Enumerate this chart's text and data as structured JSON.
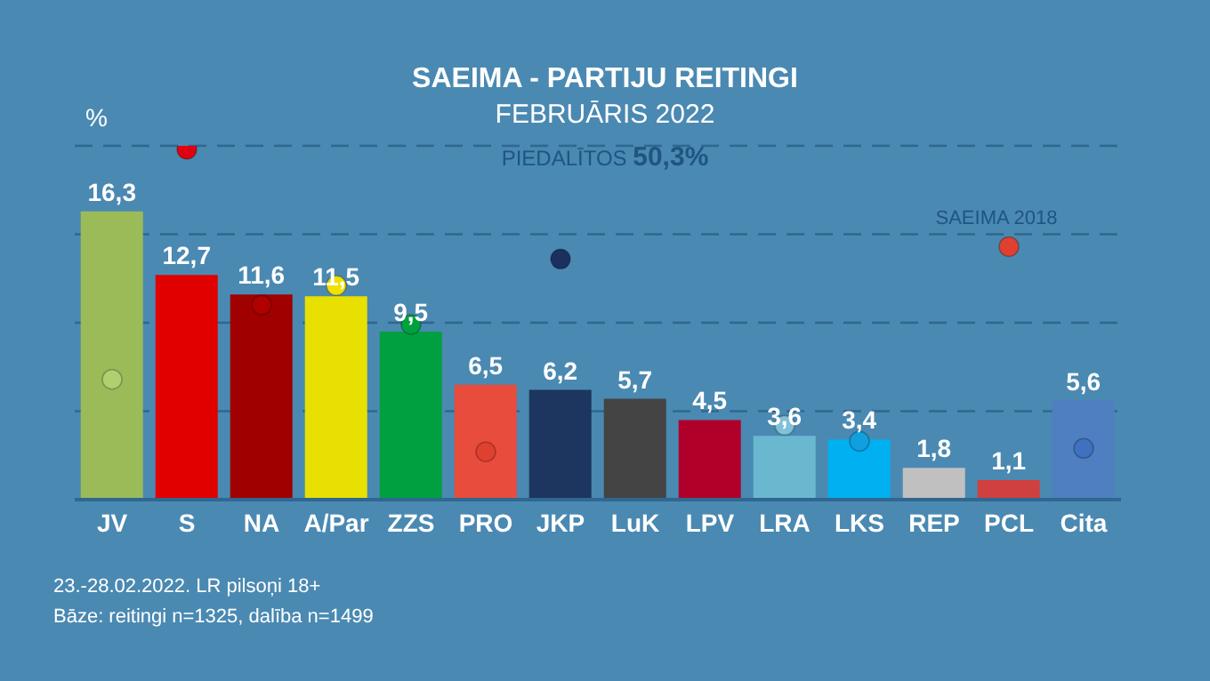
{
  "chart_data": {
    "type": "bar",
    "title": "SAEIMA - PARTIJU REITINGI",
    "subtitle": "FEBRUĀRIS 2022",
    "ylabel": "%",
    "annotations": [
      "PIEDALĪTOS 50,3%",
      "23.-28.02.2022. LR pilsoņi 18+",
      "Bāze: reitingi n=1325, dalība n=1499",
      "SAEIMA 2018"
    ],
    "categories": [
      "JV",
      "S",
      "NA",
      "A/Par",
      "ZZS",
      "PRO",
      "JKP",
      "LuK",
      "LPV",
      "LRA",
      "LKS",
      "REP",
      "PCL",
      "Cita"
    ],
    "series": [
      {
        "values": [
          16.3,
          12.7,
          11.6,
          11.5,
          9.5,
          6.5,
          6.2,
          5.7,
          4.5,
          3.6,
          3.4,
          1.8,
          1.1,
          5.6
        ],
        "colors": [
          "#9bbb59",
          "#e00000",
          "#a00000",
          "#e8e000",
          "#00a040",
          "#e84c3d",
          "#1c3660",
          "#444444",
          "#b0002a",
          "#6ab8d0",
          "#00b0f0",
          "#c0c0c0",
          "#d04040",
          "#4f7fc0"
        ],
        "value_labels": [
          "16,3",
          "12,7",
          "11,6",
          "11,5",
          "9,5",
          "6,5",
          "6,2",
          "5,7",
          "4,5",
          "3,6",
          "3,4",
          "1,8",
          "1,1",
          "5,6"
        ]
      },
      {
        "type": "scatter",
        "values": [
          6.8,
          19.8,
          11.0,
          12.1,
          9.9,
          2.7,
          13.6,
          null,
          null,
          4.2,
          3.3,
          null,
          14.3,
          2.9
        ],
        "colors": [
          "#b0d070",
          "#e00010",
          "#b00000",
          "#f0e000",
          "#00a040",
          "#e04030",
          "#1c3060",
          null,
          null,
          "#80c0d8",
          "#10a0e0",
          null,
          "#e04030",
          "#4070c0"
        ]
      }
    ],
    "ylim": [
      0,
      20
    ],
    "yticks": [
      {
        "value": 5,
        "label": null
      },
      {
        "value": 10,
        "label": null
      },
      {
        "value": 15,
        "label": null
      },
      {
        "value": 20,
        "label": null
      }
    ],
    "grid": "y",
    "legend": false,
    "marker": "circle"
  }
}
